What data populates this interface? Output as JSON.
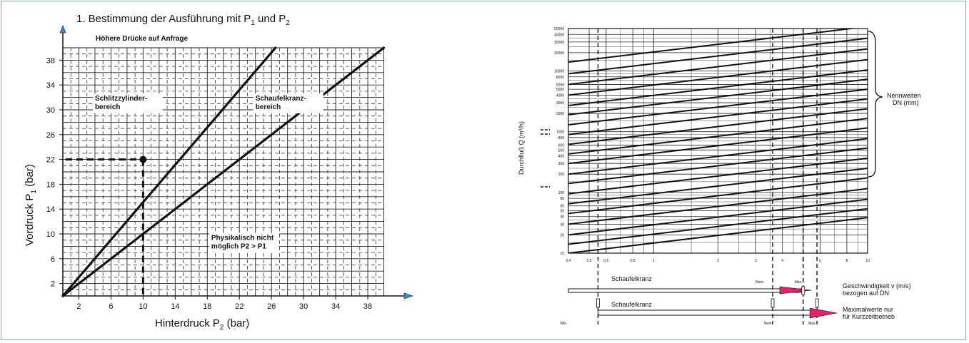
{
  "colors": {
    "frame": "#7fa7cf",
    "accent_blue": "#3a8ed6",
    "accent_red": "#e0236b",
    "ink": "#111111"
  },
  "chart_data": [
    {
      "type": "line",
      "title": "1. Bestimmung der Ausführung mit P",
      "title_sub1": "1",
      "title_mid": " und P",
      "title_sub2": "2",
      "note": "Höhere Drücke auf Anfrage",
      "xlabel": "Hinterdruck P",
      "xlabel_sub": "2",
      "xlabel_unit": " (bar)",
      "ylabel": "Vordruck P",
      "ylabel_sub": "1",
      "ylabel_unit": " (bar)",
      "xlim": [
        0,
        42
      ],
      "ylim": [
        0,
        40
      ],
      "grid": true,
      "xticks": [
        "2",
        "6",
        "10",
        "14",
        "18",
        "22",
        "26",
        "30",
        "34",
        "38"
      ],
      "xtick_values": [
        2,
        6,
        10,
        14,
        18,
        22,
        26,
        30,
        34,
        38
      ],
      "yticks": [
        "2",
        "6",
        "10",
        "14",
        "18",
        "22",
        "26",
        "30",
        "34",
        "38"
      ],
      "ytick_values": [
        2,
        6,
        10,
        14,
        18,
        22,
        26,
        30,
        34,
        38
      ],
      "series": [
        {
          "values": [
            [
              0,
              0
            ],
            [
              26.5,
              40
            ]
          ]
        },
        {
          "values": [
            [
              0,
              0
            ],
            [
              40,
              40
            ]
          ]
        }
      ],
      "example_point": [
        10,
        22
      ],
      "regions": [
        {
          "lines": [
            "Schlitzzylinder-",
            "bereich"
          ],
          "at": [
            4,
            31.5
          ]
        },
        {
          "lines": [
            "Schaufelkranz-",
            "bereich"
          ],
          "at": [
            24,
            31.5
          ]
        },
        {
          "lines": [
            "Physikalisch nicht",
            "möglich P2 > P1"
          ],
          "at": [
            18.5,
            9
          ]
        }
      ]
    },
    {
      "type": "line",
      "ylabel": "Durchfluß Q (m³/h)",
      "xlabel": "Geschwindigkeit v (m/s)",
      "xlabel_note": "bezogen auf DN",
      "right_label": "Nennweiten",
      "right_label_2": "DN (mm)",
      "xscale": "log",
      "yscale": "log",
      "xlim": [
        0.4,
        10
      ],
      "ylim": [
        10,
        50000
      ],
      "xticks": [
        "0,4",
        "0,5",
        "0,6",
        "0,8",
        "1",
        "2",
        "3",
        "4",
        "5",
        "6",
        "8",
        "10"
      ],
      "xtick_values": [
        0.4,
        0.5,
        0.6,
        0.8,
        1,
        2,
        3,
        4,
        5,
        6,
        8,
        10
      ],
      "yticks": [
        "10",
        "20",
        "30",
        "40",
        "50",
        "60",
        "80",
        "100",
        "200",
        "300",
        "400",
        "500",
        "600",
        "800",
        "1000",
        "2000",
        "3000",
        "4000",
        "5000",
        "6000",
        "8000",
        "10000",
        "20000",
        "30000",
        "40000",
        "50000"
      ],
      "ytick_values": [
        10,
        20,
        30,
        40,
        50,
        60,
        80,
        100,
        200,
        300,
        400,
        500,
        600,
        800,
        1000,
        2000,
        3000,
        4000,
        5000,
        6000,
        8000,
        10000,
        20000,
        30000,
        40000,
        50000
      ],
      "dn_lines_Q_at_v_min": [
        10,
        14,
        20,
        30,
        45,
        65,
        95,
        140,
        200,
        300,
        430,
        620,
        900,
        1300,
        1900,
        2700,
        4000,
        6000,
        9000,
        14000
      ],
      "dashed_v_lines": [
        0.55,
        3.6,
        5.0,
        5.8
      ],
      "scale_bars": [
        {
          "label": "Schaufelkranz",
          "nom_label": "Nom.",
          "max_label": "Max.",
          "nominal_v": 3.6,
          "max_v": 5.0
        },
        {
          "label": "Schaufelkranz",
          "min_label": "Min.",
          "nom_label": "Nom.",
          "max_label": "Max.",
          "min_v": 0.55,
          "nominal_v": 3.6,
          "max_v": 5.8
        }
      ],
      "note": "Maximalwerte nur",
      "note_2": "für Kurzzeitbetrieb"
    }
  ]
}
